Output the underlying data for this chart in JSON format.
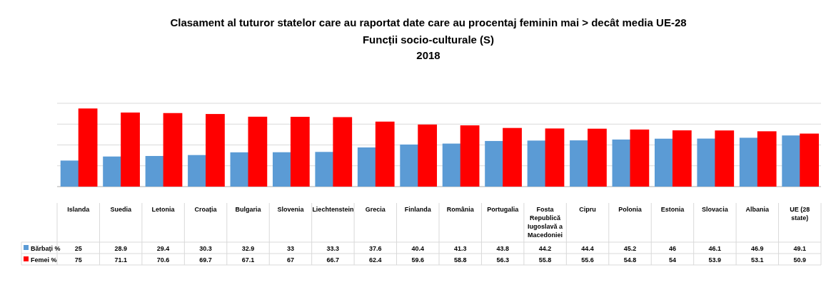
{
  "chart_data": {
    "type": "bar",
    "title": "Clasament al tuturor statelor care au raportat date care au procentaj feminin mai > decât media UE-28",
    "subtitle": "Funcții socio-culturale (S)\n2018",
    "categories": [
      "Islanda",
      "Suedia",
      "Letonia",
      "Croația",
      "Bulgaria",
      "Slovenia",
      "Liechtenstein",
      "Grecia",
      "Finlanda",
      "România",
      "Portugalia",
      "Fosta Republică Iugoslavă a Macedoniei",
      "Cipru",
      "Polonia",
      "Estonia",
      "Slovacia",
      "Albania",
      "UE (28 state)"
    ],
    "series": [
      {
        "name": "Bărbați %",
        "color": "#5b9bd5",
        "values": [
          25,
          28.9,
          29.4,
          30.3,
          32.9,
          33,
          33.3,
          37.6,
          40.4,
          41.3,
          43.8,
          44.2,
          44.4,
          45.2,
          46,
          46.1,
          46.9,
          49.1
        ]
      },
      {
        "name": "Femei %",
        "color": "#ff0000",
        "values": [
          75,
          71.1,
          70.6,
          69.7,
          67.1,
          67,
          66.7,
          62.4,
          59.6,
          58.8,
          56.3,
          55.8,
          55.6,
          54.8,
          54,
          53.9,
          53.1,
          50.9
        ]
      }
    ],
    "ylim": [
      0,
      80
    ],
    "yticks": [
      {
        "value": 0,
        "label": null
      },
      {
        "value": 20,
        "label": null
      },
      {
        "value": 40,
        "label": null
      },
      {
        "value": 60,
        "label": null
      },
      {
        "value": 80,
        "label": null
      }
    ],
    "grid": "y",
    "tick_labels": "x",
    "data_labels": true,
    "legend": "bottom"
  }
}
